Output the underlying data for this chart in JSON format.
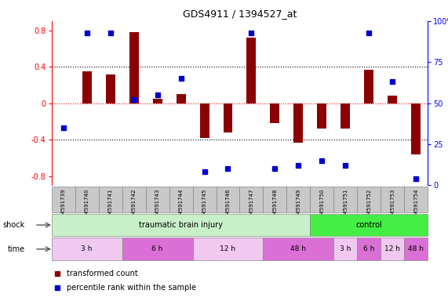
{
  "title": "GDS4911 / 1394527_at",
  "samples": [
    "GSM591739",
    "GSM591740",
    "GSM591741",
    "GSM591742",
    "GSM591743",
    "GSM591744",
    "GSM591745",
    "GSM591746",
    "GSM591747",
    "GSM591748",
    "GSM591749",
    "GSM591750",
    "GSM591751",
    "GSM591752",
    "GSM591753",
    "GSM591754"
  ],
  "bar_values": [
    0.0,
    0.35,
    0.31,
    0.78,
    0.05,
    0.1,
    -0.38,
    -0.32,
    0.72,
    -0.22,
    -0.43,
    -0.28,
    -0.28,
    0.37,
    0.08,
    -0.56
  ],
  "percentile_values": [
    35,
    93,
    93,
    52,
    55,
    65,
    8,
    10,
    93,
    10,
    12,
    15,
    12,
    93,
    63,
    4
  ],
  "ylim_left": [
    -0.9,
    0.9
  ],
  "ylim_right": [
    0,
    100
  ],
  "bar_color": "#8B0000",
  "dot_color": "#0000CD",
  "background_color": "#ffffff",
  "shock_label": "shock",
  "time_label": "time",
  "shock_tbi_color": "#C8F0C8",
  "shock_ctrl_color": "#44EE44",
  "time_colors": [
    "#F0C8F0",
    "#DA70D6",
    "#F0C8F0",
    "#DA70D6",
    "#F0C8F0",
    "#DA70D6",
    "#F0C8F0",
    "#DA70D6"
  ],
  "legend_bar_label": "transformed count",
  "legend_dot_label": "percentile rank within the sample",
  "sample_box_color": "#C8C8C8",
  "sample_box_edge": "#888888"
}
